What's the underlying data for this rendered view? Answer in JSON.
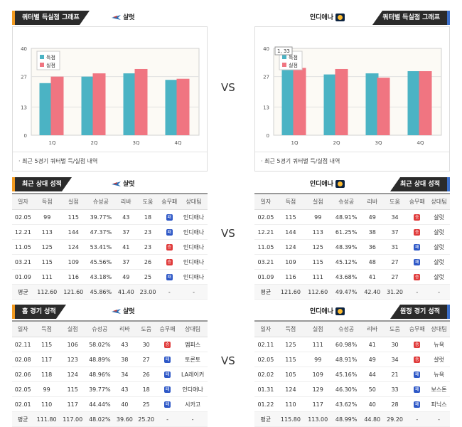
{
  "sections": [
    {
      "left": {
        "title": "쿼터별 득실점 그래프",
        "team": "샬럿"
      },
      "right": {
        "title": "쿼터별 득실점 그래프",
        "team": "인디애나"
      },
      "vs": "VS"
    },
    {
      "left": {
        "title": "최근 상대 성적",
        "team": "샬럿"
      },
      "right": {
        "title": "최근 상대 성적",
        "team": "인디애나"
      },
      "vs": "VS"
    },
    {
      "left": {
        "title": "홈 경기 성적",
        "team": "샬럿"
      },
      "right": {
        "title": "원정 경기 성적",
        "team": "인디애나"
      },
      "vs": "VS"
    }
  ],
  "chart_data": [
    {
      "type": "bar",
      "categories": [
        "1Q",
        "2Q",
        "3Q",
        "4Q"
      ],
      "series": [
        {
          "name": "득점",
          "values": [
            24,
            27,
            28.5,
            25.5
          ]
        },
        {
          "name": "실점",
          "values": [
            27,
            28.5,
            30.5,
            26
          ]
        }
      ],
      "ylim": [
        0,
        40
      ],
      "yticks": [
        "0",
        "13",
        "27",
        "40"
      ],
      "legend": "top-left",
      "note": "최근 5경기 쿼터별 득/실점 내역",
      "colors": {
        "scored": "#4bb3c4",
        "allowed": "#f07581"
      }
    },
    {
      "type": "bar",
      "categories": [
        "1Q",
        "2Q",
        "3Q",
        "4Q"
      ],
      "series": [
        {
          "name": "득점",
          "values": [
            30,
            28,
            28.5,
            29.5
          ]
        },
        {
          "name": "실점",
          "values": [
            31,
            30.5,
            26.5,
            29.5
          ]
        }
      ],
      "ylim": [
        0,
        40
      ],
      "yticks": [
        "0",
        "13",
        "27",
        "40"
      ],
      "legend": "top-left",
      "tooltip": "1, 33",
      "note": "최근 5경기 쿼터별 득/실점 내역",
      "colors": {
        "scored": "#4bb3c4",
        "allowed": "#f07581"
      }
    }
  ],
  "table_headers": [
    "일자",
    "득점",
    "실점",
    "슈성공",
    "리바",
    "도움",
    "승무패",
    "상대팀"
  ],
  "badges": {
    "W": "승",
    "L": "패"
  },
  "tables": {
    "recent_left": {
      "rows": [
        [
          "02.05",
          "99",
          "115",
          "39.77%",
          "43",
          "18",
          "L",
          "인디애나"
        ],
        [
          "12.21",
          "113",
          "144",
          "47.37%",
          "37",
          "23",
          "L",
          "인디애나"
        ],
        [
          "11.05",
          "125",
          "124",
          "53.41%",
          "41",
          "23",
          "W",
          "인디애나"
        ],
        [
          "03.21",
          "115",
          "109",
          "45.56%",
          "37",
          "26",
          "W",
          "인디애나"
        ],
        [
          "01.09",
          "111",
          "116",
          "43.18%",
          "49",
          "25",
          "L",
          "인디애나"
        ]
      ],
      "avg": [
        "평균",
        "112.60",
        "121.60",
        "45.86%",
        "41.40",
        "23.00",
        "-",
        "-"
      ]
    },
    "recent_right": {
      "rows": [
        [
          "02.05",
          "115",
          "99",
          "48.91%",
          "49",
          "34",
          "W",
          "샬럿"
        ],
        [
          "12.21",
          "144",
          "113",
          "61.25%",
          "38",
          "37",
          "W",
          "샬럿"
        ],
        [
          "11.05",
          "124",
          "125",
          "48.39%",
          "36",
          "31",
          "L",
          "샬럿"
        ],
        [
          "03.21",
          "109",
          "115",
          "45.12%",
          "48",
          "27",
          "L",
          "샬럿"
        ],
        [
          "01.09",
          "116",
          "111",
          "43.68%",
          "41",
          "27",
          "W",
          "샬럿"
        ]
      ],
      "avg": [
        "평균",
        "121.60",
        "112.60",
        "49.47%",
        "42.40",
        "31.20",
        "-",
        "-"
      ]
    },
    "home_left": {
      "rows": [
        [
          "02.11",
          "115",
          "106",
          "58.02%",
          "43",
          "30",
          "W",
          "멤피스"
        ],
        [
          "02.08",
          "117",
          "123",
          "48.89%",
          "38",
          "27",
          "L",
          "토론토"
        ],
        [
          "02.06",
          "118",
          "124",
          "48.96%",
          "34",
          "26",
          "L",
          "LA레이커"
        ],
        [
          "02.05",
          "99",
          "115",
          "39.77%",
          "43",
          "18",
          "L",
          "인디애나"
        ],
        [
          "02.01",
          "110",
          "117",
          "44.44%",
          "40",
          "25",
          "L",
          "시카고"
        ]
      ],
      "avg": [
        "평균",
        "111.80",
        "117.00",
        "48.02%",
        "39.60",
        "25.20",
        "-",
        "-"
      ]
    },
    "away_right": {
      "rows": [
        [
          "02.11",
          "125",
          "111",
          "60.98%",
          "41",
          "30",
          "W",
          "뉴욕"
        ],
        [
          "02.05",
          "115",
          "99",
          "48.91%",
          "49",
          "34",
          "W",
          "샬럿"
        ],
        [
          "02.02",
          "105",
          "109",
          "45.16%",
          "44",
          "21",
          "L",
          "뉴욕"
        ],
        [
          "01.31",
          "124",
          "129",
          "46.30%",
          "50",
          "33",
          "L",
          "보스톤"
        ],
        [
          "01.22",
          "110",
          "117",
          "43.62%",
          "40",
          "28",
          "L",
          "피닉스"
        ]
      ],
      "avg": [
        "평균",
        "115.80",
        "113.00",
        "48.99%",
        "44.80",
        "29.20",
        "-",
        "-"
      ]
    }
  }
}
